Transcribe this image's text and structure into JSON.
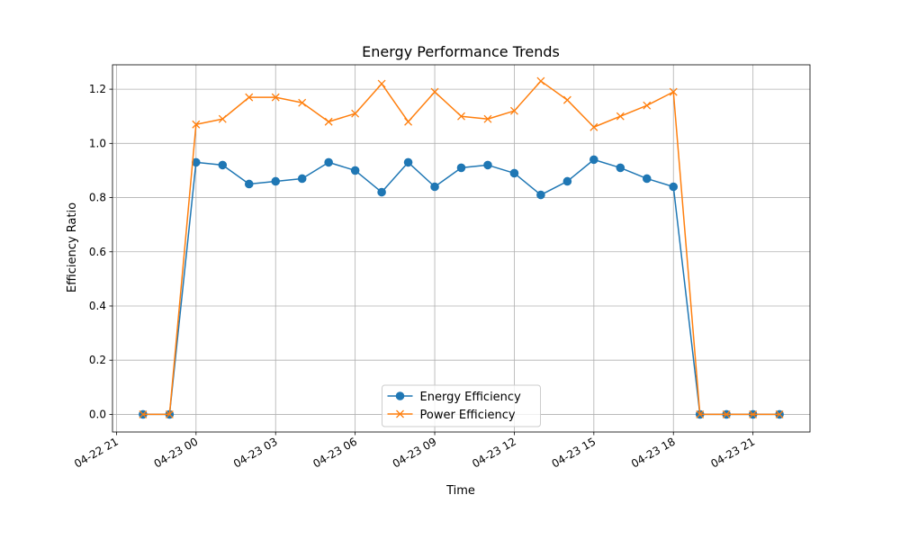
{
  "chart_data": {
    "type": "line",
    "title": "Energy Performance Trends",
    "xlabel": "Time",
    "ylabel": "Efficiency Ratio",
    "x_ticks": [
      "04-22 21",
      "04-23 00",
      "04-23 03",
      "04-23 06",
      "04-23 09",
      "04-23 12",
      "04-23 15",
      "04-23 18",
      "04-23 21"
    ],
    "y_ticks": [
      "0.0",
      "0.2",
      "0.4",
      "0.6",
      "0.8",
      "1.0",
      "1.2"
    ],
    "xlim": [
      "2024-04-22 20:51",
      "2024-04-23 23:09"
    ],
    "ylim": [
      -0.065,
      1.29
    ],
    "grid": true,
    "legend_position": "lower center",
    "x": [
      "2024-04-22 22:00",
      "2024-04-22 23:00",
      "2024-04-23 00:00",
      "2024-04-23 01:00",
      "2024-04-23 02:00",
      "2024-04-23 03:00",
      "2024-04-23 04:00",
      "2024-04-23 05:00",
      "2024-04-23 06:00",
      "2024-04-23 07:00",
      "2024-04-23 08:00",
      "2024-04-23 09:00",
      "2024-04-23 10:00",
      "2024-04-23 11:00",
      "2024-04-23 12:00",
      "2024-04-23 13:00",
      "2024-04-23 14:00",
      "2024-04-23 15:00",
      "2024-04-23 16:00",
      "2024-04-23 17:00",
      "2024-04-23 18:00",
      "2024-04-23 19:00",
      "2024-04-23 20:00",
      "2024-04-23 21:00",
      "2024-04-23 22:00"
    ],
    "series": [
      {
        "name": "Energy Efficiency",
        "color": "#1f77b4",
        "marker": "circle",
        "values": [
          0.0,
          0.0,
          0.93,
          0.92,
          0.85,
          0.86,
          0.87,
          0.93,
          0.9,
          0.82,
          0.93,
          0.84,
          0.91,
          0.92,
          0.89,
          0.81,
          0.86,
          0.94,
          0.91,
          0.87,
          0.84,
          0.0,
          0.0,
          0.0,
          0.0
        ]
      },
      {
        "name": "Power Efficiency",
        "color": "#ff7f0e",
        "marker": "x",
        "values": [
          0.0,
          0.0,
          1.07,
          1.09,
          1.17,
          1.17,
          1.15,
          1.08,
          1.11,
          1.22,
          1.08,
          1.19,
          1.1,
          1.09,
          1.12,
          1.23,
          1.16,
          1.06,
          1.1,
          1.14,
          1.19,
          0.0,
          0.0,
          0.0,
          0.0
        ]
      }
    ]
  }
}
